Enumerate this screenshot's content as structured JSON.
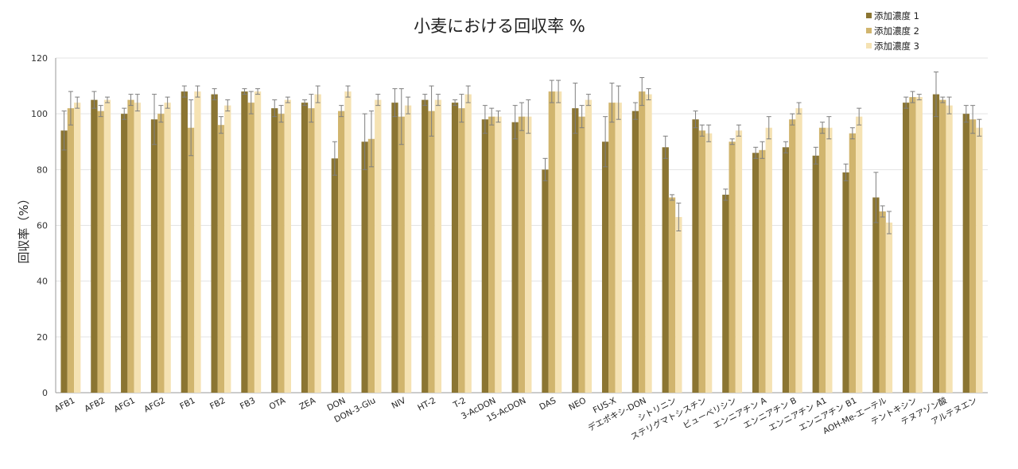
{
  "chart_data": {
    "type": "bar",
    "title": "小麦における回収率 %",
    "ylabel": "回収率（%）",
    "xlabel": "",
    "ylim": [
      0,
      120
    ],
    "yticks": [
      0,
      20,
      40,
      60,
      80,
      100,
      120
    ],
    "grid": true,
    "legend_position": "top-right",
    "categories": [
      "AFB1",
      "AFB2",
      "AFG1",
      "AFG2",
      "FB1",
      "FB2",
      "FB3",
      "OTA",
      "ZEA",
      "DON",
      "DON-3-Glu",
      "NIV",
      "HT-2",
      "T-2",
      "3-AcDON",
      "15-AcDON",
      "DAS",
      "NEO",
      "FUS-X",
      "デエポキシ-DON",
      "シトリニン",
      "ステリグマトシスチン",
      "ビューベリシン",
      "エンニアチン A",
      "エンニアチン B",
      "エンニアチン A1",
      "エンニアチン B1",
      "AOH-Me-エーテル",
      "テントキシン",
      "テヌアゾン酸",
      "アルテヌエン"
    ],
    "series": [
      {
        "name": "添加濃度 1",
        "color": "#8b7532",
        "values": [
          94,
          105,
          100,
          98,
          108,
          107,
          108,
          102,
          104,
          84,
          90,
          104,
          105,
          104,
          98,
          97,
          80,
          102,
          90,
          101,
          88,
          98,
          71,
          86,
          88,
          85,
          79,
          70,
          104,
          107,
          100
        ],
        "errors": [
          7,
          3,
          2,
          9,
          2,
          2,
          1,
          3,
          1,
          6,
          10,
          5,
          2,
          1,
          5,
          6,
          4,
          9,
          9,
          3,
          4,
          3,
          2,
          2,
          2,
          3,
          3,
          9,
          2,
          8,
          3
        ]
      },
      {
        "name": "添加濃度 2",
        "color": "#d1b56e",
        "values": [
          102,
          101,
          105,
          100,
          95,
          96,
          104,
          100,
          102,
          101,
          91,
          99,
          101,
          102,
          99,
          99,
          108,
          99,
          104,
          108,
          70,
          94,
          90,
          87,
          98,
          95,
          93,
          65,
          106,
          105,
          98
        ],
        "errors": [
          6,
          2,
          2,
          3,
          10,
          3,
          4,
          3,
          5,
          2,
          10,
          10,
          9,
          5,
          3,
          5,
          4,
          4,
          7,
          5,
          1,
          2,
          1,
          3,
          2,
          2,
          2,
          2,
          2,
          1,
          5
        ]
      },
      {
        "name": "添加濃度 3",
        "color": "#f5e2b3",
        "values": [
          104,
          105,
          104,
          104,
          108,
          103,
          108,
          105,
          107,
          108,
          105,
          103,
          105,
          107,
          99,
          99,
          108,
          105,
          104,
          107,
          63,
          93,
          94,
          95,
          102,
          95,
          99,
          61,
          106,
          103,
          95
        ],
        "errors": [
          2,
          1,
          3,
          2,
          2,
          2,
          1,
          1,
          3,
          2,
          2,
          3,
          2,
          3,
          2,
          6,
          4,
          2,
          6,
          2,
          5,
          3,
          2,
          4,
          2,
          4,
          3,
          4,
          1,
          3,
          3
        ]
      }
    ]
  }
}
